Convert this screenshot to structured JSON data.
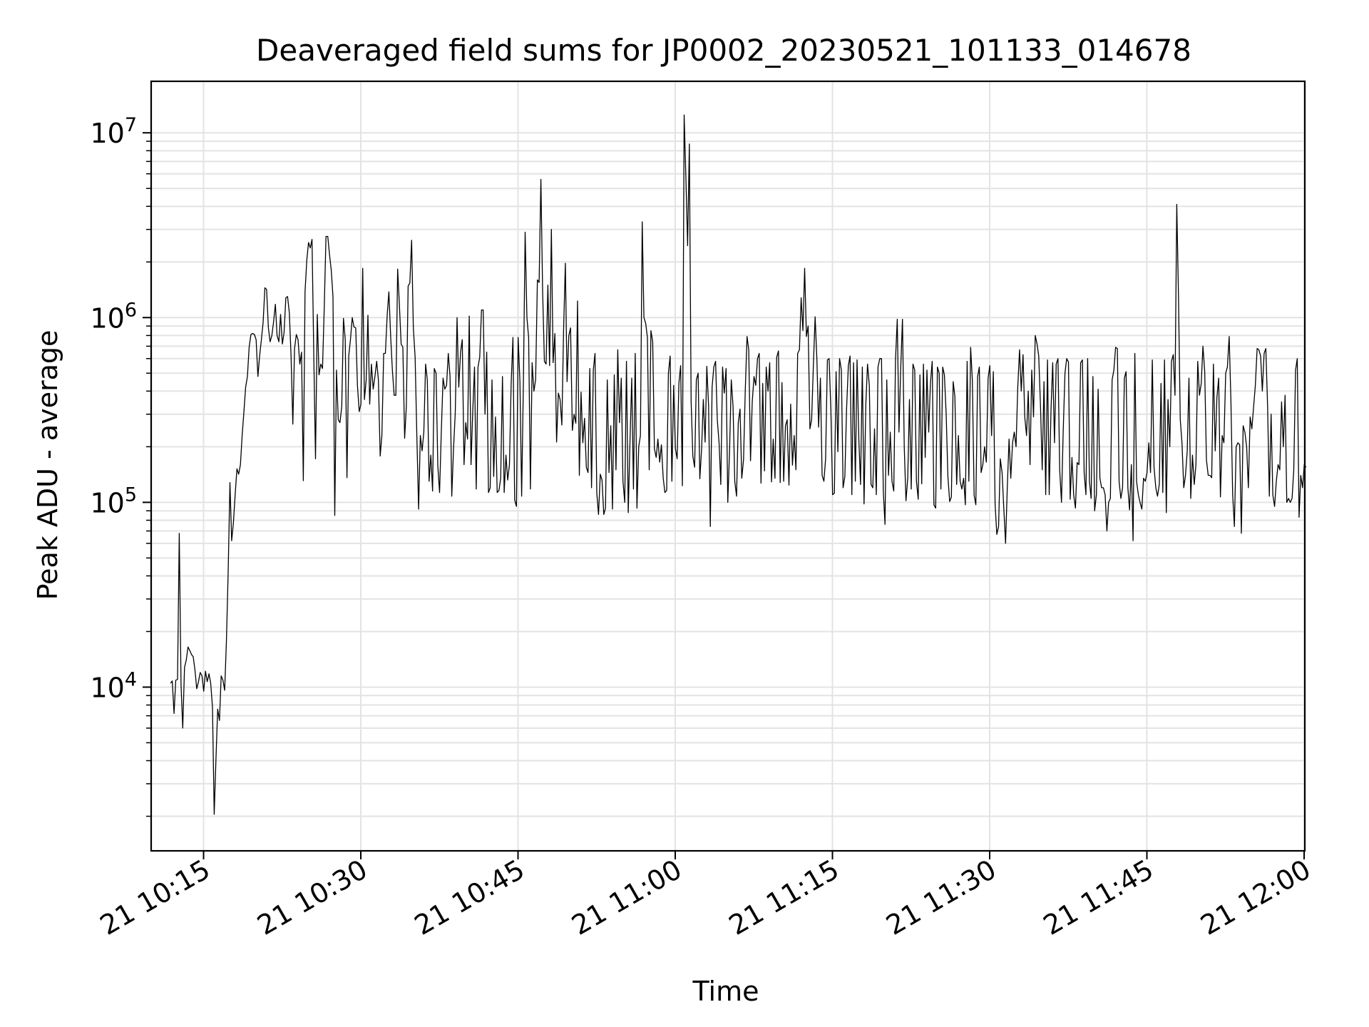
{
  "chart_data": {
    "type": "line",
    "title": "Deaveraged field sums for JP0002_20230521_101133_014678",
    "xlabel": "Time",
    "ylabel": "Peak ADU - average",
    "yscale": "log",
    "ylim": [
      1300,
      19000000
    ],
    "grid": true,
    "line_color": "#000000",
    "x_tick_labels": [
      "21 10:15",
      "21 10:30",
      "21 10:45",
      "21 11:00",
      "21 11:15",
      "21 11:30",
      "21 11:45",
      "21 12:00"
    ],
    "x_tick_minutes": [
      15,
      30,
      45,
      60,
      75,
      90,
      105,
      120
    ],
    "y_ticks": [
      {
        "value": 10000,
        "base": "10",
        "exp": "4"
      },
      {
        "value": 100000,
        "base": "10",
        "exp": "5"
      },
      {
        "value": 1000000,
        "base": "10",
        "exp": "6"
      },
      {
        "value": 10000000,
        "base": "10",
        "exp": "7"
      }
    ],
    "series": [
      {
        "x_start": "2023-05-21 10:11:51",
        "x_step_seconds": 10,
        "values": [
          10500,
          10800,
          7200,
          10900,
          11000,
          68000,
          10300,
          6000,
          12800,
          14000,
          16500,
          15800,
          15000,
          14600,
          12300,
          9800,
          10700,
          12000,
          11500,
          9500,
          12200,
          10700,
          11800,
          10500,
          7800,
          2050,
          4100,
          7600,
          6600,
          11500,
          10900,
          9600,
          18000,
          42000,
          128000,
          62000,
          78000,
          110000,
          152000,
          142000,
          160000,
          230000,
          310000,
          420000,
          480000,
          690000,
          810000,
          820000,
          810000,
          760000,
          480000,
          620000,
          760000,
          940000,
          1450000,
          1420000,
          880000,
          740000,
          800000,
          950000,
          1180000,
          800000,
          740000,
          1040000,
          720000,
          830000,
          1280000,
          1300000,
          1060000,
          620000,
          265000,
          680000,
          810000,
          760000,
          560000,
          650000,
          131000,
          1380000,
          2050000,
          2550000,
          2380000,
          2650000,
          620000,
          172000,
          1040000,
          490000,
          560000,
          530000,
          1150000,
          2750000,
          2750000,
          2200000,
          1800000,
          1300000,
          85000,
          520000,
          280000,
          270000,
          330000,
          990000,
          760000,
          136000,
          620000,
          760000,
          1000000,
          890000,
          880000,
          430000,
          310000,
          340000,
          1850000,
          360000,
          460000,
          1030000,
          340000,
          560000,
          410000,
          480000,
          580000,
          460000,
          178000,
          230000,
          640000,
          640000,
          1030000,
          1380000,
          790000,
          520000,
          380000,
          380000,
          1830000,
          1180000,
          720000,
          690000,
          222000,
          330000,
          1480000,
          1540000,
          2620000,
          880000,
          610000,
          230000,
          92000,
          230000,
          190000,
          240000,
          560000,
          460000,
          130000,
          180000,
          115000,
          530000,
          500000,
          158000,
          113000,
          240000,
          470000,
          410000,
          430000,
          640000,
          480000,
          108000,
          196000,
          305000,
          1000000,
          420000,
          650000,
          760000,
          160000,
          270000,
          220000,
          1020000,
          160000,
          310000,
          540000,
          118000,
          540000,
          610000,
          1100000,
          1100000,
          300000,
          650000,
          113000,
          120000,
          460000,
          138000,
          290000,
          113000,
          116000,
          135000,
          480000,
          113000,
          180000,
          132000,
          160000,
          440000,
          780000,
          103000,
          95000,
          780000,
          450000,
          108000,
          460000,
          2900000,
          1000000,
          780000,
          118000,
          570000,
          400000,
          460000,
          1600000,
          1550000,
          5600000,
          1400000,
          580000,
          560000,
          1500000,
          550000,
          3000000,
          570000,
          820000,
          212000,
          390000,
          360000,
          262000,
          850000,
          1970000,
          450000,
          800000,
          880000,
          245000,
          300000,
          268000,
          1230000,
          140000,
          395000,
          210000,
          285000,
          155000,
          145000,
          530000,
          120000,
          520000,
          640000,
          112000,
          86000,
          142000,
          132000,
          86000,
          93000,
          460000,
          145000,
          260000,
          92000,
          490000,
          150000,
          670000,
          270000,
          470000,
          130000,
          100000,
          580000,
          88000,
          210000,
          470000,
          118000,
          640000,
          93000,
          200000,
          230000,
          3300000,
          1000000,
          930000,
          780000,
          150000,
          850000,
          740000,
          195000,
          175000,
          220000,
          165000,
          205000,
          136000,
          113000,
          116000,
          500000,
          620000,
          130000,
          430000,
          196000,
          172000,
          440000,
          550000,
          123000,
          12500000,
          5800000,
          2450000,
          8700000,
          350000,
          178000,
          155000,
          460000,
          500000,
          134000,
          195000,
          360000,
          212000,
          545000,
          330000,
          74000,
          420000,
          540000,
          580000,
          280000,
          210000,
          125000,
          540000,
          390000,
          530000,
          100000,
          190000,
          460000,
          330000,
          130000,
          108000,
          270000,
          320000,
          135000,
          170000,
          400000,
          790000,
          670000,
          168000,
          350000,
          480000,
          430000,
          600000,
          640000,
          127000,
          440000,
          148000,
          540000,
          400000,
          570000,
          129000,
          220000,
          135000,
          610000,
          660000,
          128000,
          445000,
          130000,
          260000,
          280000,
          124000,
          340000,
          159000,
          230000,
          150000,
          640000,
          670000,
          1280000,
          850000,
          1850000,
          790000,
          900000,
          250000,
          280000,
          560000,
          1010000,
          590000,
          255000,
          470000,
          140000,
          130000,
          172000,
          590000,
          600000,
          315000,
          110000,
          112000,
          510000,
          188000,
          600000,
          520000,
          120000,
          138000,
          320000,
          550000,
          620000,
          110000,
          570000,
          130000,
          590000,
          220000,
          125000,
          540000,
          98000,
          340000,
          560000,
          430000,
          125000,
          120000,
          250000,
          110000,
          540000,
          600000,
          600000,
          115000,
          76000,
          460000,
          140000,
          240000,
          130000,
          115000,
          590000,
          980000,
          240000,
          540000,
          980000,
          200000,
          102000,
          135000,
          360000,
          118000,
          560000,
          520000,
          130000,
          104000,
          490000,
          126000,
          560000,
          175000,
          520000,
          240000,
          440000,
          580000,
          97000,
          93000,
          540000,
          500000,
          118000,
          540000,
          490000,
          300000,
          138000,
          101000,
          107000,
          450000,
          375000,
          125000,
          230000,
          130000,
          118000,
          135000,
          97000,
          580000,
          130000,
          690000,
          460000,
          109000,
          97000,
          480000,
          540000,
          145000,
          160000,
          200000,
          165000,
          470000,
          550000,
          230000,
          510000,
          98000,
          67000,
          74000,
          172000,
          145000,
          93000,
          60000,
          120000,
          220000,
          135000,
          210000,
          240000,
          200000,
          420000,
          670000,
          400000,
          630000,
          290000,
          230000,
          400000,
          160000,
          520000,
          290000,
          800000,
          720000,
          620000,
          330000,
          150000,
          450000,
          110000,
          590000,
          110000,
          315000,
          570000,
          210000,
          560000,
          600000,
          150000,
          100000,
          240000,
          500000,
          600000,
          575000,
          104000,
          175000,
          110000,
          93000,
          164000,
          160000,
          570000,
          590000,
          145000,
          110000,
          600000,
          130000,
          105000,
          480000,
          90000,
          110000,
          410000,
          135000,
          120000,
          120000,
          110000,
          70000,
          100000,
          105000,
          460000,
          520000,
          690000,
          680000,
          130000,
          105000,
          120000,
          470000,
          510000,
          120000,
          91000,
          160000,
          62000,
          640000,
          130000,
          110000,
          100000,
          92000,
          135000,
          130000,
          145000,
          210000,
          145000,
          590000,
          155000,
          120000,
          108000,
          125000,
          440000,
          113000,
          590000,
          88000,
          360000,
          200000,
          580000,
          630000,
          380000,
          4100000,
          1300000,
          280000,
          210000,
          120000,
          140000,
          190000,
          470000,
          105000,
          180000,
          125000,
          160000,
          580000,
          380000,
          440000,
          700000,
          510000,
          170000,
          140000,
          140000,
          136000,
          560000,
          190000,
          370000,
          470000,
          107000,
          230000,
          210000,
          500000,
          540000,
          790000,
          360000,
          110000,
          74000,
          200000,
          210000,
          205000,
          68000,
          260000,
          240000,
          200000,
          120000,
          290000,
          250000,
          330000,
          430000,
          680000,
          670000,
          620000,
          400000,
          640000,
          680000,
          330000,
          108000,
          300000,
          110000,
          95000,
          130000,
          160000,
          150000,
          350000,
          200000,
          380000,
          100000,
          105000,
          100000,
          105000,
          150000,
          520000,
          600000,
          83000,
          140000,
          120000,
          160000,
          155000
        ]
      }
    ]
  }
}
